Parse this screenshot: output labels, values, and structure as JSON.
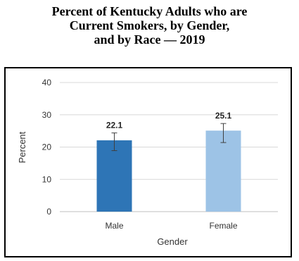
{
  "chart_data": {
    "type": "bar",
    "title_lines": [
      "Percent of Kentucky Adults who are",
      "Current Smokers, by Gender,",
      "and by Race — 2019"
    ],
    "xlabel": "Gender",
    "ylabel": "Percent",
    "categories": [
      "Male",
      "Female"
    ],
    "values": [
      22.1,
      25.1
    ],
    "value_labels": [
      "22.1",
      "25.1"
    ],
    "error_bars": [
      {
        "low": 18.9,
        "high": 24.4
      },
      {
        "low": 21.4,
        "high": 27.3
      }
    ],
    "colors": [
      "#2e75b6",
      "#9dc3e6"
    ],
    "ylim": [
      0,
      40
    ],
    "yticks": [
      0,
      10,
      20,
      30,
      40
    ],
    "grid": true
  }
}
